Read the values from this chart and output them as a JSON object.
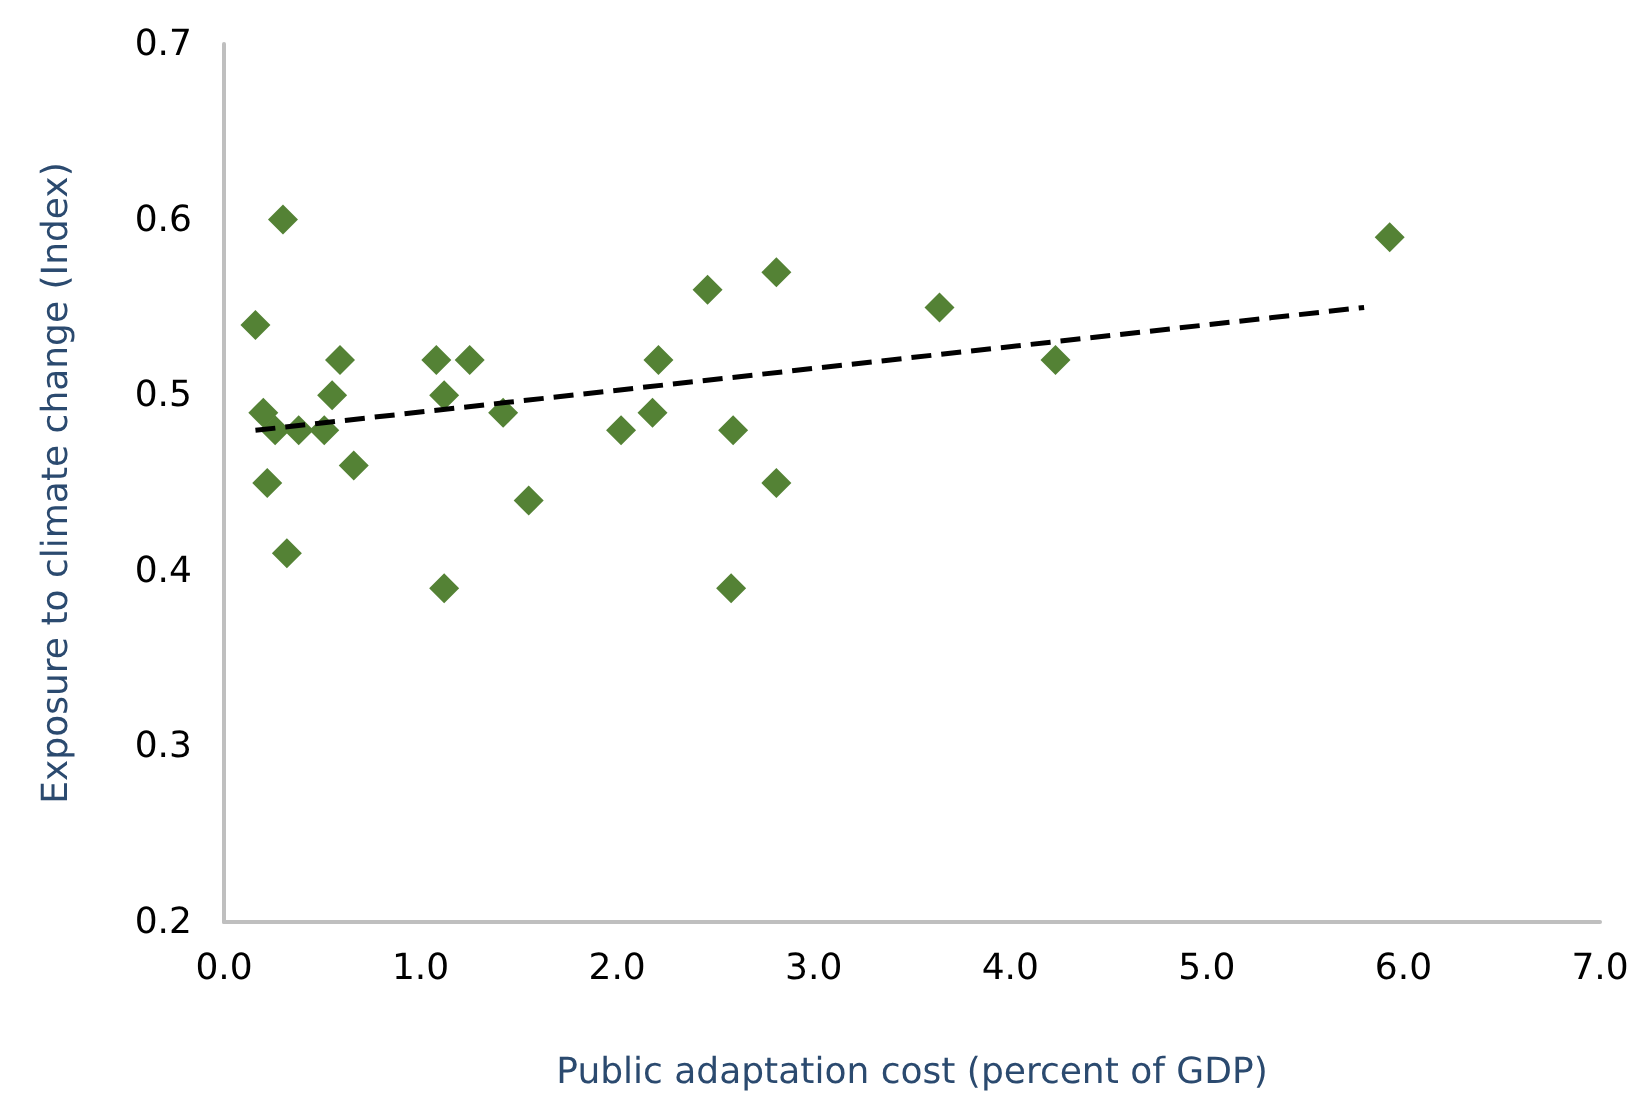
{
  "chart_data": {
    "type": "scatter",
    "xlabel": "Public adaptation cost (percent of GDP)",
    "ylabel": "Exposure to climate change (Index)",
    "xlim": [
      0,
      7
    ],
    "xticks": [
      {
        "value": 0,
        "label": "0.0"
      },
      {
        "value": 1,
        "label": "1.0"
      },
      {
        "value": 2,
        "label": "2.0"
      },
      {
        "value": 3,
        "label": "3.0"
      },
      {
        "value": 4,
        "label": "4.0"
      },
      {
        "value": 5,
        "label": "5.0"
      },
      {
        "value": 6,
        "label": "6.0"
      },
      {
        "value": 7,
        "label": "7.0"
      }
    ],
    "ylim": [
      0.2,
      0.7
    ],
    "yticks": [
      0.2,
      0.3,
      0.4,
      0.5,
      0.6,
      0.7
    ],
    "grid": false,
    "series": [
      {
        "color": "#548235",
        "marker": "diamond",
        "x": [
          0.16,
          0.2,
          0.3,
          0.22,
          0.26,
          0.32,
          0.38,
          0.51,
          0.55,
          0.59,
          0.66,
          1.08,
          1.12,
          1.12,
          1.25,
          1.42,
          1.55,
          2.02,
          2.18,
          2.21,
          2.46,
          2.59,
          2.58,
          2.81,
          2.81,
          3.64,
          4.23,
          5.93
        ],
        "values": [
          0.54,
          0.49,
          0.6,
          0.45,
          0.48,
          0.41,
          0.48,
          0.48,
          0.5,
          0.52,
          0.46,
          0.52,
          0.5,
          0.39,
          0.52,
          0.49,
          0.44,
          0.48,
          0.49,
          0.52,
          0.56,
          0.48,
          0.39,
          0.57,
          0.45,
          0.55,
          0.52,
          0.59
        ]
      },
      {
        "type": "line",
        "color": "#000000",
        "marker": "none",
        "line_style": "dashed",
        "x": [
          0.16,
          5.8
        ],
        "values": [
          0.48,
          0.55
        ]
      }
    ]
  }
}
